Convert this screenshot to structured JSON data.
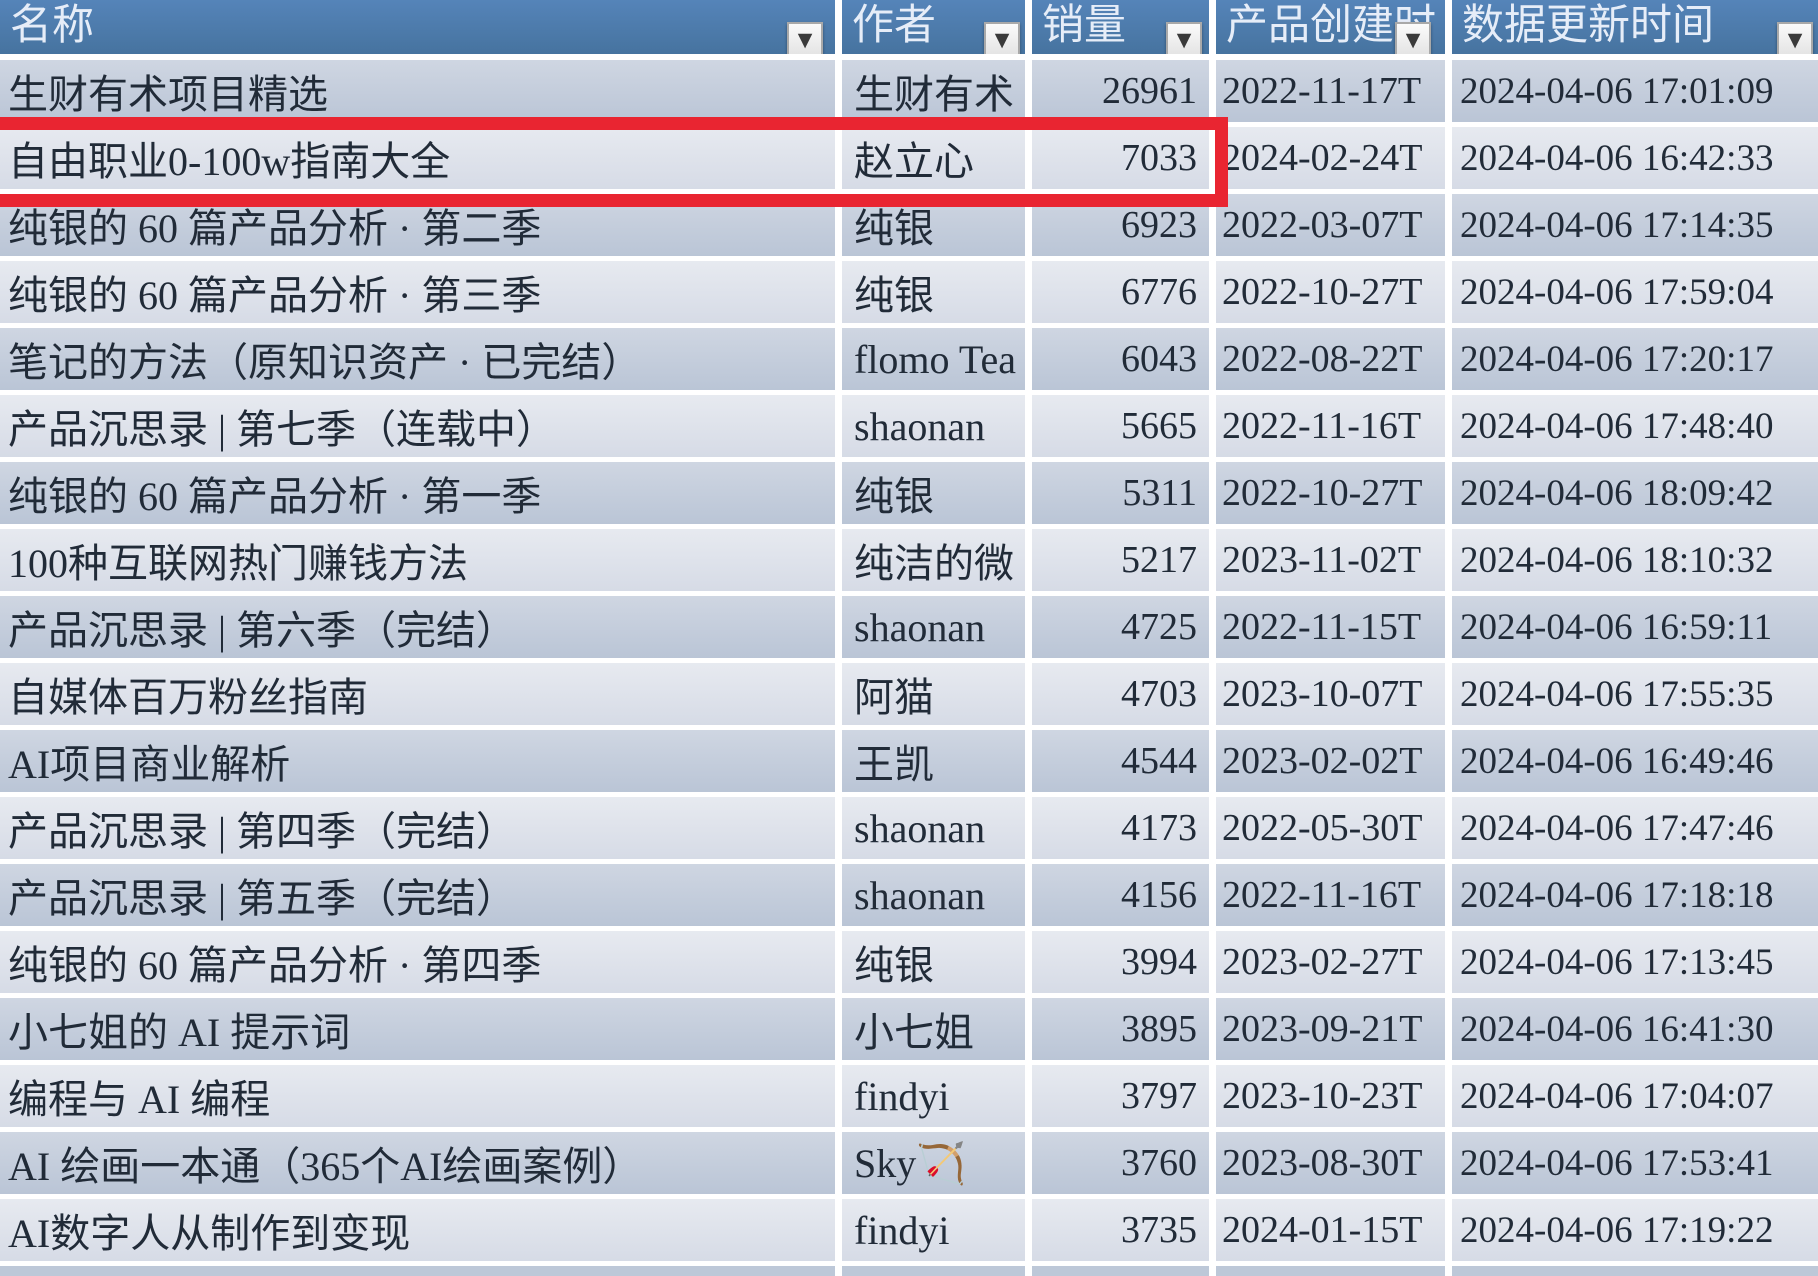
{
  "table": {
    "columns": [
      {
        "key": "name",
        "label": "名称"
      },
      {
        "key": "author",
        "label": "作者"
      },
      {
        "key": "sales",
        "label": "销量"
      },
      {
        "key": "created",
        "label": "产品创建时"
      },
      {
        "key": "updated",
        "label": "数据更新时间"
      }
    ],
    "rows": [
      {
        "name": "生财有术项目精选",
        "author": "生财有术",
        "sales": "26961",
        "created": "2022-11-17T",
        "updated": "2024-04-06 17:01:09"
      },
      {
        "name": "自由职业0-100w指南大全",
        "author": "赵立心",
        "sales": "7033",
        "created": "2024-02-24T",
        "updated": "2024-04-06 16:42:33",
        "highlighted": true
      },
      {
        "name": "纯银的 60 篇产品分析 · 第二季",
        "author": "纯银",
        "sales": "6923",
        "created": "2022-03-07T",
        "updated": "2024-04-06 17:14:35"
      },
      {
        "name": "纯银的 60 篇产品分析 · 第三季",
        "author": "纯银",
        "sales": "6776",
        "created": "2022-10-27T",
        "updated": "2024-04-06 17:59:04"
      },
      {
        "name": "笔记的方法（原知识资产 · 已完结）",
        "author": "flomo Tea",
        "sales": "6043",
        "created": "2022-08-22T",
        "updated": "2024-04-06 17:20:17"
      },
      {
        "name": "产品沉思录 | 第七季（连载中）",
        "author": "shaonan",
        "sales": "5665",
        "created": "2022-11-16T",
        "updated": "2024-04-06 17:48:40"
      },
      {
        "name": "纯银的 60 篇产品分析 · 第一季",
        "author": "纯银",
        "sales": "5311",
        "created": "2022-10-27T",
        "updated": "2024-04-06 18:09:42"
      },
      {
        "name": "100种互联网热门赚钱方法",
        "author": "纯洁的微",
        "sales": "5217",
        "created": "2023-11-02T",
        "updated": "2024-04-06 18:10:32"
      },
      {
        "name": "产品沉思录 | 第六季（完结）",
        "author": "shaonan",
        "sales": "4725",
        "created": "2022-11-15T",
        "updated": "2024-04-06 16:59:11"
      },
      {
        "name": "自媒体百万粉丝指南",
        "author": "阿猫",
        "sales": "4703",
        "created": "2023-10-07T",
        "updated": "2024-04-06 17:55:35"
      },
      {
        "name": "AI项目商业解析",
        "author": "王凯",
        "sales": "4544",
        "created": "2023-02-02T",
        "updated": "2024-04-06 16:49:46"
      },
      {
        "name": "产品沉思录 | 第四季（完结）",
        "author": "shaonan",
        "sales": "4173",
        "created": "2022-05-30T",
        "updated": "2024-04-06 17:47:46"
      },
      {
        "name": "产品沉思录 | 第五季（完结）",
        "author": "shaonan",
        "sales": "4156",
        "created": "2022-11-16T",
        "updated": "2024-04-06 17:18:18"
      },
      {
        "name": "纯银的 60 篇产品分析 · 第四季",
        "author": "纯银",
        "sales": "3994",
        "created": "2023-02-27T",
        "updated": "2024-04-06 17:13:45"
      },
      {
        "name": "小七姐的 AI 提示词",
        "author": "小七姐",
        "sales": "3895",
        "created": "2023-09-21T",
        "updated": "2024-04-06 16:41:30"
      },
      {
        "name": "编程与 AI 编程",
        "author": "findyi",
        "sales": "3797",
        "created": "2023-10-23T",
        "updated": "2024-04-06 17:04:07"
      },
      {
        "name": "AI 绘画一本通（365个AI绘画案例）",
        "author": "Sky🏹",
        "sales": "3760",
        "created": "2023-08-30T",
        "updated": "2024-04-06 17:53:41"
      },
      {
        "name": "AI数字人从制作到变现",
        "author": "findyi",
        "sales": "3735",
        "created": "2024-01-15T",
        "updated": "2024-04-06 17:19:22"
      }
    ]
  },
  "icons": {
    "filter_dropdown": "▼"
  },
  "colors": {
    "header_blue": "#4a77ab",
    "row_dark": "#c2cddd",
    "row_light": "#dee3ec",
    "gridline": "#ffffff",
    "highlight_red": "#e92531",
    "text": "#212b38",
    "header_text": "#e6edf8"
  }
}
